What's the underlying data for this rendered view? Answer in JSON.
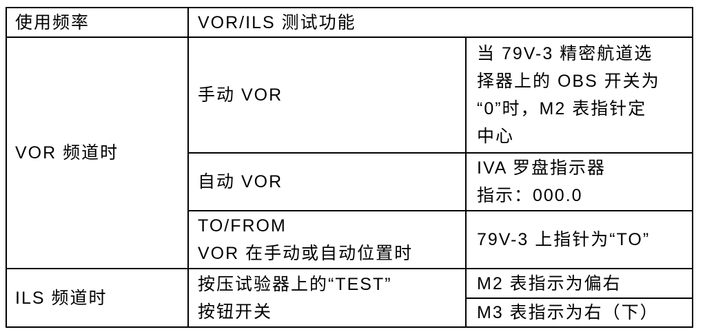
{
  "colors": {
    "border": "#000000",
    "background": "#ffffff",
    "text": "#000000"
  },
  "table": {
    "header": {
      "usage_frequency": "使用频率",
      "test_function": "VOR/ILS 测试功能"
    },
    "vor": {
      "label": "VOR 频道时",
      "rows": [
        {
          "mode": "手动 VOR",
          "result": "当 79V-3 精密航道选\n择器上的 OBS 开关为\n“0”时，M2 表指针定\n中心"
        },
        {
          "mode": "自动 VOR",
          "result": "IVA 罗盘指示器\n指示：000.0"
        },
        {
          "mode": "TO/FROM\nVOR 在手动或自动位置时",
          "result": "79V-3 上指针为“TO”"
        }
      ]
    },
    "ils": {
      "label": "ILS 频道时",
      "action": "按压试验器上的“TEST”\n按钮开关",
      "results": [
        "M2 表指示为偏右",
        "M3 表指示为右（下）"
      ]
    }
  }
}
